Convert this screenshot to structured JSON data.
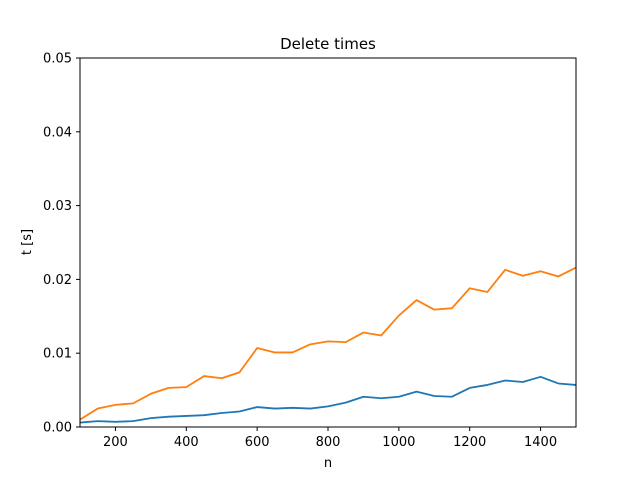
{
  "chart_data": {
    "type": "line",
    "title": "Delete times",
    "xlabel": "n",
    "ylabel": "t [s]",
    "xlim": [
      100,
      1500
    ],
    "ylim": [
      0,
      0.05
    ],
    "xticks": [
      200,
      400,
      600,
      800,
      1000,
      1200,
      1400
    ],
    "yticks": [
      0.0,
      0.01,
      0.02,
      0.03,
      0.04,
      0.05
    ],
    "xtick_labels": [
      "200",
      "400",
      "600",
      "800",
      "1000",
      "1200",
      "1400"
    ],
    "ytick_labels": [
      "0.00",
      "0.01",
      "0.02",
      "0.03",
      "0.04",
      "0.05"
    ],
    "grid": false,
    "legend": "none",
    "x": [
      100,
      150,
      200,
      250,
      300,
      350,
      400,
      450,
      500,
      550,
      600,
      650,
      700,
      750,
      800,
      850,
      900,
      950,
      1000,
      1050,
      1100,
      1150,
      1200,
      1250,
      1300,
      1350,
      1400,
      1450,
      1500
    ],
    "series": [
      {
        "color": "#1f77b4",
        "values": [
          0.0006,
          0.0008,
          0.0007,
          0.0008,
          0.0012,
          0.0014,
          0.0015,
          0.0016,
          0.0019,
          0.0021,
          0.0027,
          0.0025,
          0.0026,
          0.0025,
          0.0028,
          0.0033,
          0.0041,
          0.0039,
          0.0041,
          0.0048,
          0.0042,
          0.0041,
          0.0053,
          0.0057,
          0.0063,
          0.0061,
          0.0068,
          0.0059,
          0.0057
        ]
      },
      {
        "color": "#ff7f0e",
        "values": [
          0.001,
          0.0025,
          0.003,
          0.0032,
          0.0045,
          0.0053,
          0.0054,
          0.0069,
          0.0066,
          0.0074,
          0.0107,
          0.0101,
          0.0101,
          0.0112,
          0.0116,
          0.0115,
          0.0128,
          0.0124,
          0.0151,
          0.0172,
          0.0159,
          0.0161,
          0.0188,
          0.0183,
          0.0213,
          0.0205,
          0.0211,
          0.0204,
          0.0216
        ]
      }
    ]
  }
}
